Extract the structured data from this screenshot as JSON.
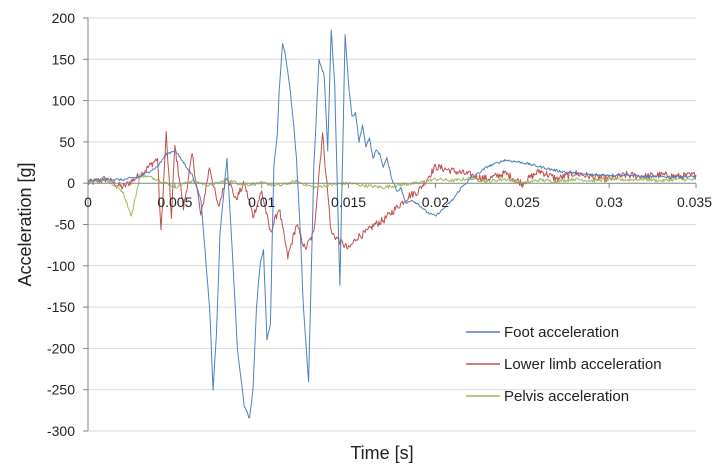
{
  "chart_data": {
    "type": "line",
    "xlabel": "Time [s]",
    "ylabel": "Acceleration [g]",
    "xlim": [
      0,
      0.035
    ],
    "ylim": [
      -300,
      200
    ],
    "x_ticks": [
      0,
      0.005,
      0.01,
      0.015,
      0.02,
      0.025,
      0.03,
      0.035
    ],
    "x_tick_labels": [
      "0",
      "0.005",
      "0.01",
      "0.015",
      "0.02",
      "0.025",
      "0.03",
      "0.035"
    ],
    "y_ticks": [
      200,
      150,
      100,
      50,
      0,
      -50,
      -100,
      -150,
      -200,
      -250,
      -300
    ],
    "y_tick_labels": [
      "200",
      "150",
      "100",
      "50",
      "0",
      "-50",
      "-100",
      "-150",
      "-200",
      "-250",
      "-300"
    ],
    "grid": "horizontal",
    "legend_position": "bottom-right",
    "series": [
      {
        "name": "Foot acceleration",
        "color": "#4f81bd",
        "x": [
          0,
          0.001,
          0.002,
          0.003,
          0.004,
          0.0045,
          0.005,
          0.0055,
          0.006,
          0.0065,
          0.007,
          0.0072,
          0.0074,
          0.0076,
          0.008,
          0.0083,
          0.0086,
          0.009,
          0.0093,
          0.0095,
          0.0097,
          0.0099,
          0.0101,
          0.0103,
          0.0105,
          0.0107,
          0.0109,
          0.011,
          0.0112,
          0.0114,
          0.0116,
          0.0118,
          0.012,
          0.0122,
          0.0124,
          0.0127,
          0.013,
          0.0133,
          0.0136,
          0.0138,
          0.014,
          0.0142,
          0.0145,
          0.0148,
          0.015,
          0.0152,
          0.0154,
          0.0156,
          0.0158,
          0.016,
          0.0162,
          0.0164,
          0.0166,
          0.0168,
          0.017,
          0.0172,
          0.0175,
          0.0178,
          0.018,
          0.0183,
          0.0186,
          0.019,
          0.0195,
          0.02,
          0.0205,
          0.021,
          0.0215,
          0.022,
          0.023,
          0.024,
          0.025,
          0.026,
          0.027,
          0.028,
          0.029,
          0.03,
          0.031,
          0.032,
          0.033,
          0.034,
          0.035
        ],
        "y": [
          3,
          5,
          4,
          8,
          20,
          35,
          40,
          25,
          10,
          -20,
          -150,
          -250,
          -180,
          -60,
          30,
          -80,
          -200,
          -270,
          -285,
          -250,
          -150,
          -100,
          -80,
          -190,
          -170,
          20,
          60,
          110,
          170,
          150,
          120,
          80,
          30,
          -50,
          -150,
          -240,
          20,
          150,
          130,
          40,
          185,
          120,
          -125,
          180,
          120,
          80,
          85,
          50,
          70,
          45,
          55,
          30,
          40,
          35,
          20,
          30,
          5,
          -10,
          -5,
          -25,
          -20,
          -25,
          -35,
          -40,
          -30,
          -20,
          -5,
          5,
          20,
          28,
          25,
          20,
          15,
          12,
          10,
          10,
          10,
          8,
          8,
          8,
          8
        ]
      },
      {
        "name": "Lower limb acceleration",
        "color": "#c0504d",
        "x": [
          0,
          0.001,
          0.002,
          0.003,
          0.004,
          0.0042,
          0.0045,
          0.0048,
          0.005,
          0.0055,
          0.006,
          0.0065,
          0.007,
          0.0075,
          0.008,
          0.0085,
          0.009,
          0.0095,
          0.01,
          0.0105,
          0.011,
          0.0115,
          0.012,
          0.0125,
          0.013,
          0.0135,
          0.014,
          0.0145,
          0.015,
          0.0155,
          0.016,
          0.0165,
          0.017,
          0.0175,
          0.018,
          0.0185,
          0.019,
          0.0195,
          0.02,
          0.021,
          0.022,
          0.023,
          0.024,
          0.025,
          0.026,
          0.027,
          0.028,
          0.029,
          0.03,
          0.031,
          0.032,
          0.033,
          0.034,
          0.035
        ],
        "y": [
          0,
          5,
          -5,
          10,
          30,
          -60,
          60,
          -40,
          45,
          -30,
          35,
          -40,
          20,
          -30,
          10,
          -20,
          0,
          -40,
          -10,
          -60,
          -30,
          -90,
          -50,
          -80,
          -60,
          60,
          -60,
          -70,
          -80,
          -65,
          -60,
          -50,
          -45,
          -35,
          -25,
          -15,
          -10,
          5,
          20,
          15,
          10,
          5,
          12,
          0,
          15,
          5,
          12,
          8,
          5,
          10,
          8,
          10,
          8,
          10
        ]
      },
      {
        "name": "Pelvis acceleration",
        "color": "#9bbb59",
        "x": [
          0,
          0.001,
          0.002,
          0.0025,
          0.003,
          0.004,
          0.005,
          0.006,
          0.007,
          0.008,
          0.009,
          0.01,
          0.011,
          0.012,
          0.013,
          0.014,
          0.015,
          0.016,
          0.017,
          0.018,
          0.019,
          0.02,
          0.021,
          0.022,
          0.023,
          0.024,
          0.025,
          0.026,
          0.027,
          0.028,
          0.029,
          0.03,
          0.031,
          0.032,
          0.033,
          0.034,
          0.035
        ],
        "y": [
          2,
          5,
          -10,
          -40,
          10,
          5,
          -5,
          3,
          -3,
          4,
          -2,
          0,
          -3,
          2,
          -5,
          -2,
          0,
          -3,
          -5,
          -2,
          0,
          5,
          3,
          6,
          2,
          5,
          0,
          4,
          2,
          5,
          3,
          5,
          4,
          5,
          3,
          5,
          4
        ]
      }
    ]
  }
}
